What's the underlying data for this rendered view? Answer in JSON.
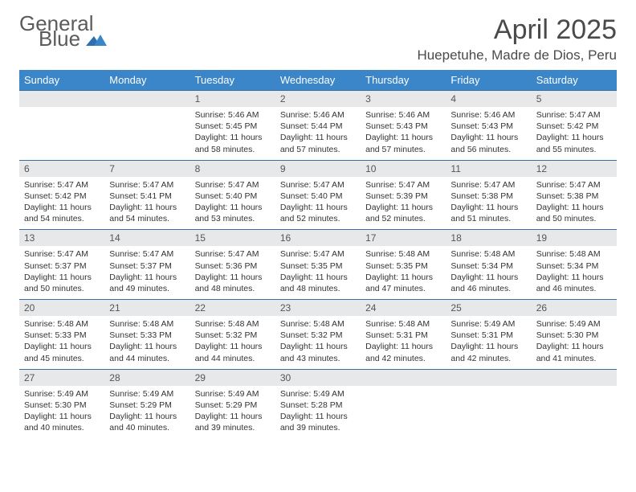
{
  "logo": {
    "word1": "General",
    "word2": "Blue"
  },
  "title": "April 2025",
  "location": "Huepetuhe, Madre de Dios, Peru",
  "colors": {
    "header_bg": "#3a86c8",
    "row_divider": "#3a6fa0",
    "daynum_bg": "#e7e8e9",
    "text": "#333333",
    "logo_gray": "#5b5b5b",
    "logo_blue": "#367ebf"
  },
  "fonts": {
    "title_size_pt": 26,
    "location_size_pt": 13,
    "header_size_pt": 10,
    "cell_size_pt": 8
  },
  "columns": [
    "Sunday",
    "Monday",
    "Tuesday",
    "Wednesday",
    "Thursday",
    "Friday",
    "Saturday"
  ],
  "weeks": [
    [
      null,
      null,
      {
        "n": "1",
        "sr": "5:46 AM",
        "ss": "5:45 PM",
        "dl": "11 hours and 58 minutes."
      },
      {
        "n": "2",
        "sr": "5:46 AM",
        "ss": "5:44 PM",
        "dl": "11 hours and 57 minutes."
      },
      {
        "n": "3",
        "sr": "5:46 AM",
        "ss": "5:43 PM",
        "dl": "11 hours and 57 minutes."
      },
      {
        "n": "4",
        "sr": "5:46 AM",
        "ss": "5:43 PM",
        "dl": "11 hours and 56 minutes."
      },
      {
        "n": "5",
        "sr": "5:47 AM",
        "ss": "5:42 PM",
        "dl": "11 hours and 55 minutes."
      }
    ],
    [
      {
        "n": "6",
        "sr": "5:47 AM",
        "ss": "5:42 PM",
        "dl": "11 hours and 54 minutes."
      },
      {
        "n": "7",
        "sr": "5:47 AM",
        "ss": "5:41 PM",
        "dl": "11 hours and 54 minutes."
      },
      {
        "n": "8",
        "sr": "5:47 AM",
        "ss": "5:40 PM",
        "dl": "11 hours and 53 minutes."
      },
      {
        "n": "9",
        "sr": "5:47 AM",
        "ss": "5:40 PM",
        "dl": "11 hours and 52 minutes."
      },
      {
        "n": "10",
        "sr": "5:47 AM",
        "ss": "5:39 PM",
        "dl": "11 hours and 52 minutes."
      },
      {
        "n": "11",
        "sr": "5:47 AM",
        "ss": "5:38 PM",
        "dl": "11 hours and 51 minutes."
      },
      {
        "n": "12",
        "sr": "5:47 AM",
        "ss": "5:38 PM",
        "dl": "11 hours and 50 minutes."
      }
    ],
    [
      {
        "n": "13",
        "sr": "5:47 AM",
        "ss": "5:37 PM",
        "dl": "11 hours and 50 minutes."
      },
      {
        "n": "14",
        "sr": "5:47 AM",
        "ss": "5:37 PM",
        "dl": "11 hours and 49 minutes."
      },
      {
        "n": "15",
        "sr": "5:47 AM",
        "ss": "5:36 PM",
        "dl": "11 hours and 48 minutes."
      },
      {
        "n": "16",
        "sr": "5:47 AM",
        "ss": "5:35 PM",
        "dl": "11 hours and 48 minutes."
      },
      {
        "n": "17",
        "sr": "5:48 AM",
        "ss": "5:35 PM",
        "dl": "11 hours and 47 minutes."
      },
      {
        "n": "18",
        "sr": "5:48 AM",
        "ss": "5:34 PM",
        "dl": "11 hours and 46 minutes."
      },
      {
        "n": "19",
        "sr": "5:48 AM",
        "ss": "5:34 PM",
        "dl": "11 hours and 46 minutes."
      }
    ],
    [
      {
        "n": "20",
        "sr": "5:48 AM",
        "ss": "5:33 PM",
        "dl": "11 hours and 45 minutes."
      },
      {
        "n": "21",
        "sr": "5:48 AM",
        "ss": "5:33 PM",
        "dl": "11 hours and 44 minutes."
      },
      {
        "n": "22",
        "sr": "5:48 AM",
        "ss": "5:32 PM",
        "dl": "11 hours and 44 minutes."
      },
      {
        "n": "23",
        "sr": "5:48 AM",
        "ss": "5:32 PM",
        "dl": "11 hours and 43 minutes."
      },
      {
        "n": "24",
        "sr": "5:48 AM",
        "ss": "5:31 PM",
        "dl": "11 hours and 42 minutes."
      },
      {
        "n": "25",
        "sr": "5:49 AM",
        "ss": "5:31 PM",
        "dl": "11 hours and 42 minutes."
      },
      {
        "n": "26",
        "sr": "5:49 AM",
        "ss": "5:30 PM",
        "dl": "11 hours and 41 minutes."
      }
    ],
    [
      {
        "n": "27",
        "sr": "5:49 AM",
        "ss": "5:30 PM",
        "dl": "11 hours and 40 minutes."
      },
      {
        "n": "28",
        "sr": "5:49 AM",
        "ss": "5:29 PM",
        "dl": "11 hours and 40 minutes."
      },
      {
        "n": "29",
        "sr": "5:49 AM",
        "ss": "5:29 PM",
        "dl": "11 hours and 39 minutes."
      },
      {
        "n": "30",
        "sr": "5:49 AM",
        "ss": "5:28 PM",
        "dl": "11 hours and 39 minutes."
      },
      null,
      null,
      null
    ]
  ],
  "labels": {
    "sunrise": "Sunrise:",
    "sunset": "Sunset:",
    "daylight": "Daylight:"
  }
}
